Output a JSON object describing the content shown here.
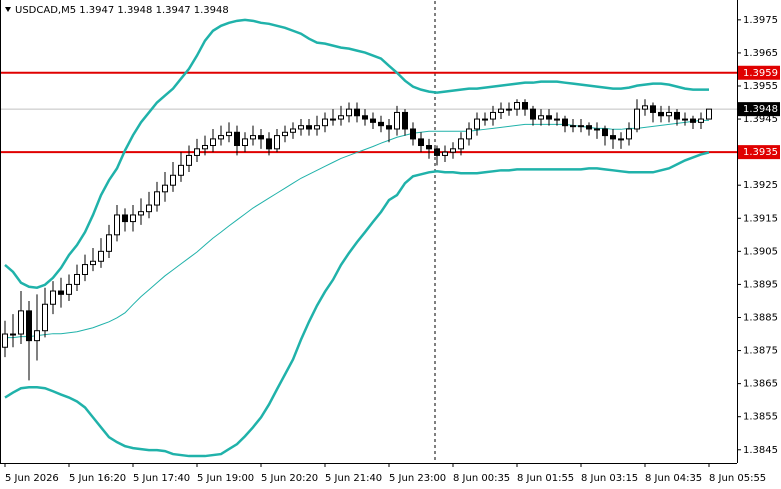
{
  "chart_data": {
    "type": "candlestick",
    "title": "USDCAD,M5  1.3947 1.3948 1.3947 1.3948",
    "categories": [
      "5 Jun 2026",
      null,
      null,
      null,
      null,
      null,
      null,
      null,
      "5 Jun 16:20",
      null,
      null,
      null,
      null,
      null,
      null,
      null,
      "5 Jun 17:40",
      null,
      null,
      null,
      null,
      null,
      null,
      null,
      "5 Jun 19:00",
      null,
      null,
      null,
      null,
      null,
      null,
      null,
      "5 Jun 20:20",
      null,
      null,
      null,
      null,
      null,
      null,
      null,
      "5 Jun 21:40",
      null,
      null,
      null,
      null,
      null,
      null,
      null,
      "5 Jun 23:00",
      null,
      null,
      null,
      null,
      null,
      null,
      null,
      "8 Jun 00:35",
      null,
      null,
      null,
      null,
      null,
      null,
      null,
      "8 Jun 01:55",
      null,
      null,
      null,
      null,
      null,
      null,
      null,
      "8 Jun 03:15",
      null,
      null,
      null,
      null,
      null,
      null,
      null,
      "8 Jun 04:35",
      null,
      null,
      null,
      null,
      null,
      null,
      null,
      "8 Jun 05:55"
    ],
    "open": [
      1.3876,
      1.388,
      1.388,
      1.3887,
      1.3878,
      1.3881,
      1.3889,
      1.3893,
      1.3892,
      1.3895,
      1.3898,
      1.3901,
      1.3902,
      1.3905,
      1.391,
      1.3916,
      1.3914,
      1.3916,
      1.3917,
      1.3919,
      1.3923,
      1.3925,
      1.3928,
      1.3931,
      1.3934,
      1.3936,
      1.3937,
      1.3939,
      1.394,
      1.3941,
      1.3937,
      1.3939,
      1.394,
      1.3939,
      1.3936,
      1.394,
      1.3941,
      1.3942,
      1.3943,
      1.3942,
      1.3943,
      1.3945,
      1.3945,
      1.3946,
      1.3948,
      1.3946,
      1.3945,
      1.3944,
      1.3943,
      1.3942,
      1.3947,
      1.3942,
      1.3939,
      1.3937,
      1.3936,
      1.3934,
      1.3935,
      1.3936,
      1.3939,
      1.3942,
      1.3945,
      1.3945,
      1.3947,
      1.3948,
      1.3948,
      1.395,
      1.3948,
      1.3945,
      1.3946,
      1.3945,
      1.3945,
      1.3943,
      1.3943,
      1.3943,
      1.3942,
      1.3942,
      1.394,
      1.3939,
      1.3939,
      1.3942,
      1.3948,
      1.3949,
      1.3947,
      1.3946,
      1.3947,
      1.3945,
      1.3945,
      1.3944,
      1.3945
    ],
    "high": [
      1.3884,
      1.3886,
      1.3893,
      1.389,
      1.3892,
      1.3894,
      1.3896,
      1.3897,
      1.3898,
      1.3901,
      1.3904,
      1.3906,
      1.3909,
      1.3913,
      1.3919,
      1.3918,
      1.3919,
      1.3921,
      1.3923,
      1.3926,
      1.3929,
      1.3932,
      1.3935,
      1.3937,
      1.3939,
      1.394,
      1.3942,
      1.3943,
      1.3944,
      1.3943,
      1.3941,
      1.3943,
      1.3942,
      1.3941,
      1.3942,
      1.3943,
      1.3944,
      1.3945,
      1.3945,
      1.3946,
      1.3947,
      1.3948,
      1.3949,
      1.395,
      1.395,
      1.3948,
      1.3947,
      1.3946,
      1.3945,
      1.3949,
      1.3948,
      1.3944,
      1.3941,
      1.3939,
      1.3937,
      1.3937,
      1.3938,
      1.3941,
      1.3944,
      1.3947,
      1.3947,
      1.3949,
      1.395,
      1.395,
      1.3951,
      1.3951,
      1.3949,
      1.3948,
      1.3948,
      1.3947,
      1.3946,
      1.3945,
      1.3945,
      1.3944,
      1.3944,
      1.3943,
      1.3942,
      1.3941,
      1.3944,
      1.3951,
      1.3951,
      1.395,
      1.3949,
      1.3949,
      1.3948,
      1.3947,
      1.3946,
      1.3947,
      1.3948
    ],
    "low": [
      1.3873,
      1.3876,
      1.3877,
      1.3866,
      1.3872,
      1.3879,
      1.3886,
      1.3888,
      1.389,
      1.3893,
      1.3896,
      1.3899,
      1.39,
      1.3903,
      1.3908,
      1.3911,
      1.3911,
      1.3913,
      1.3915,
      1.3917,
      1.392,
      1.3923,
      1.3926,
      1.3929,
      1.3932,
      1.3934,
      1.3935,
      1.3937,
      1.3938,
      1.3934,
      1.3935,
      1.3937,
      1.3936,
      1.3934,
      1.3935,
      1.3938,
      1.3939,
      1.394,
      1.394,
      1.394,
      1.3941,
      1.3943,
      1.3943,
      1.3944,
      1.3944,
      1.3943,
      1.3942,
      1.3941,
      1.3938,
      1.394,
      1.394,
      1.3937,
      1.3935,
      1.3933,
      1.3931,
      1.3932,
      1.3933,
      1.3934,
      1.3937,
      1.394,
      1.3943,
      1.3943,
      1.3945,
      1.3946,
      1.3946,
      1.3946,
      1.3943,
      1.3943,
      1.3943,
      1.3943,
      1.3941,
      1.3941,
      1.3941,
      1.394,
      1.3939,
      1.3937,
      1.3936,
      1.3936,
      1.3937,
      1.3941,
      1.3946,
      1.3944,
      1.3944,
      1.3944,
      1.3943,
      1.3943,
      1.3942,
      1.3942,
      1.3945
    ],
    "close": [
      1.388,
      1.388,
      1.3887,
      1.3878,
      1.3881,
      1.3889,
      1.3893,
      1.3892,
      1.3895,
      1.3898,
      1.3901,
      1.3902,
      1.3905,
      1.391,
      1.3916,
      1.3914,
      1.3916,
      1.3917,
      1.3919,
      1.3923,
      1.3925,
      1.3928,
      1.3931,
      1.3934,
      1.3936,
      1.3937,
      1.3939,
      1.394,
      1.3941,
      1.3937,
      1.3939,
      1.394,
      1.3939,
      1.3936,
      1.394,
      1.3941,
      1.3942,
      1.3943,
      1.3942,
      1.3943,
      1.3945,
      1.3945,
      1.3946,
      1.3948,
      1.3946,
      1.3945,
      1.3944,
      1.3943,
      1.3942,
      1.3947,
      1.3942,
      1.3939,
      1.3937,
      1.3936,
      1.3934,
      1.3935,
      1.3936,
      1.3939,
      1.3942,
      1.3945,
      1.3945,
      1.3947,
      1.3948,
      1.3948,
      1.395,
      1.3948,
      1.3945,
      1.3946,
      1.3945,
      1.3945,
      1.3943,
      1.3943,
      1.3943,
      1.3942,
      1.3942,
      1.394,
      1.3939,
      1.3939,
      1.3942,
      1.3948,
      1.3949,
      1.3947,
      1.3946,
      1.3947,
      1.3945,
      1.3945,
      1.3944,
      1.3945,
      1.3948
    ],
    "up_color": "#ffffff",
    "down_color": "#000000",
    "bands": {
      "color": "#20b2aa",
      "upper": [
        1.39009,
        1.38988,
        1.38955,
        1.38943,
        1.3894,
        1.38949,
        1.3897,
        1.39,
        1.39039,
        1.39069,
        1.39108,
        1.3916,
        1.3922,
        1.39265,
        1.39301,
        1.39355,
        1.39401,
        1.3944,
        1.3947,
        1.395,
        1.39521,
        1.39542,
        1.39572,
        1.39602,
        1.39642,
        1.39687,
        1.39717,
        1.39732,
        1.39741,
        1.39747,
        1.3975,
        1.39747,
        1.39741,
        1.39738,
        1.39732,
        1.39726,
        1.39717,
        1.39708,
        1.39693,
        1.39681,
        1.39678,
        1.39672,
        1.39666,
        1.39663,
        1.39657,
        1.39651,
        1.39642,
        1.39633,
        1.39611,
        1.3959,
        1.39566,
        1.39548,
        1.39539,
        1.39533,
        1.3953,
        1.39533,
        1.39536,
        1.39539,
        1.39542,
        1.39542,
        1.39545,
        1.39548,
        1.39551,
        1.39554,
        1.39557,
        1.3956,
        1.3956,
        1.39563,
        1.39563,
        1.39563,
        1.3956,
        1.39557,
        1.39554,
        1.39551,
        1.39548,
        1.39545,
        1.39542,
        1.39542,
        1.39545,
        1.39551,
        1.39554,
        1.39557,
        1.39557,
        1.39554,
        1.39548,
        1.39542,
        1.39539,
        1.39539,
        1.39539
      ],
      "middle": [
        1.38789,
        1.38789,
        1.38792,
        1.38792,
        1.38795,
        1.38798,
        1.38801,
        1.38801,
        1.38804,
        1.38807,
        1.38813,
        1.38819,
        1.38828,
        1.38837,
        1.38849,
        1.38864,
        1.38889,
        1.38913,
        1.38934,
        1.38955,
        1.38976,
        1.38994,
        1.39012,
        1.3903,
        1.39048,
        1.39069,
        1.3909,
        1.39108,
        1.39127,
        1.39145,
        1.39163,
        1.39181,
        1.39196,
        1.39211,
        1.39226,
        1.39241,
        1.39256,
        1.39271,
        1.39283,
        1.39295,
        1.39307,
        1.39319,
        1.39331,
        1.3934,
        1.39349,
        1.39358,
        1.39367,
        1.39377,
        1.39386,
        1.39395,
        1.39401,
        1.39407,
        1.3941,
        1.39413,
        1.39413,
        1.39413,
        1.39413,
        1.39413,
        1.39413,
        1.39416,
        1.39419,
        1.39422,
        1.39425,
        1.39428,
        1.39431,
        1.39434,
        1.39434,
        1.39434,
        1.39434,
        1.39434,
        1.39434,
        1.39431,
        1.39428,
        1.39425,
        1.39422,
        1.39422,
        1.39419,
        1.39419,
        1.39422,
        1.39422,
        1.39425,
        1.39428,
        1.39431,
        1.39434,
        1.39437,
        1.3944,
        1.39443,
        1.39446,
        1.39446
      ],
      "lower": [
        1.38608,
        1.38623,
        1.38636,
        1.38639,
        1.38639,
        1.38636,
        1.38627,
        1.38617,
        1.38608,
        1.38596,
        1.38578,
        1.38548,
        1.38518,
        1.38488,
        1.38473,
        1.38461,
        1.38455,
        1.38452,
        1.38449,
        1.38449,
        1.38446,
        1.38437,
        1.38434,
        1.38431,
        1.38431,
        1.38431,
        1.38434,
        1.38437,
        1.38452,
        1.38467,
        1.38491,
        1.38518,
        1.38548,
        1.38587,
        1.38633,
        1.38678,
        1.38723,
        1.38783,
        1.38837,
        1.38886,
        1.38928,
        1.38964,
        1.39009,
        1.39045,
        1.39078,
        1.39108,
        1.39139,
        1.39169,
        1.39205,
        1.3922,
        1.39256,
        1.39277,
        1.39283,
        1.39289,
        1.39292,
        1.39289,
        1.39289,
        1.39286,
        1.39286,
        1.39286,
        1.39289,
        1.39292,
        1.39295,
        1.39295,
        1.39298,
        1.39298,
        1.39298,
        1.39298,
        1.39298,
        1.39298,
        1.39298,
        1.39298,
        1.39298,
        1.39301,
        1.39301,
        1.39298,
        1.39295,
        1.39292,
        1.39289,
        1.39289,
        1.39289,
        1.39289,
        1.39295,
        1.39301,
        1.39313,
        1.39325,
        1.39334,
        1.39343,
        1.39349
      ]
    },
    "levels": [
      {
        "value": 1.3959,
        "color": "#e00000"
      },
      {
        "value": 1.3935,
        "color": "#e00000"
      }
    ],
    "last_price": 1.3948,
    "ylim": [
      1.3841,
      1.3981
    ],
    "yticks": [
      1.3845,
      1.3855,
      1.3865,
      1.3875,
      1.3885,
      1.3895,
      1.3905,
      1.3915,
      1.3925,
      1.3935,
      1.3945,
      1.3955,
      1.3965,
      1.3975
    ]
  }
}
